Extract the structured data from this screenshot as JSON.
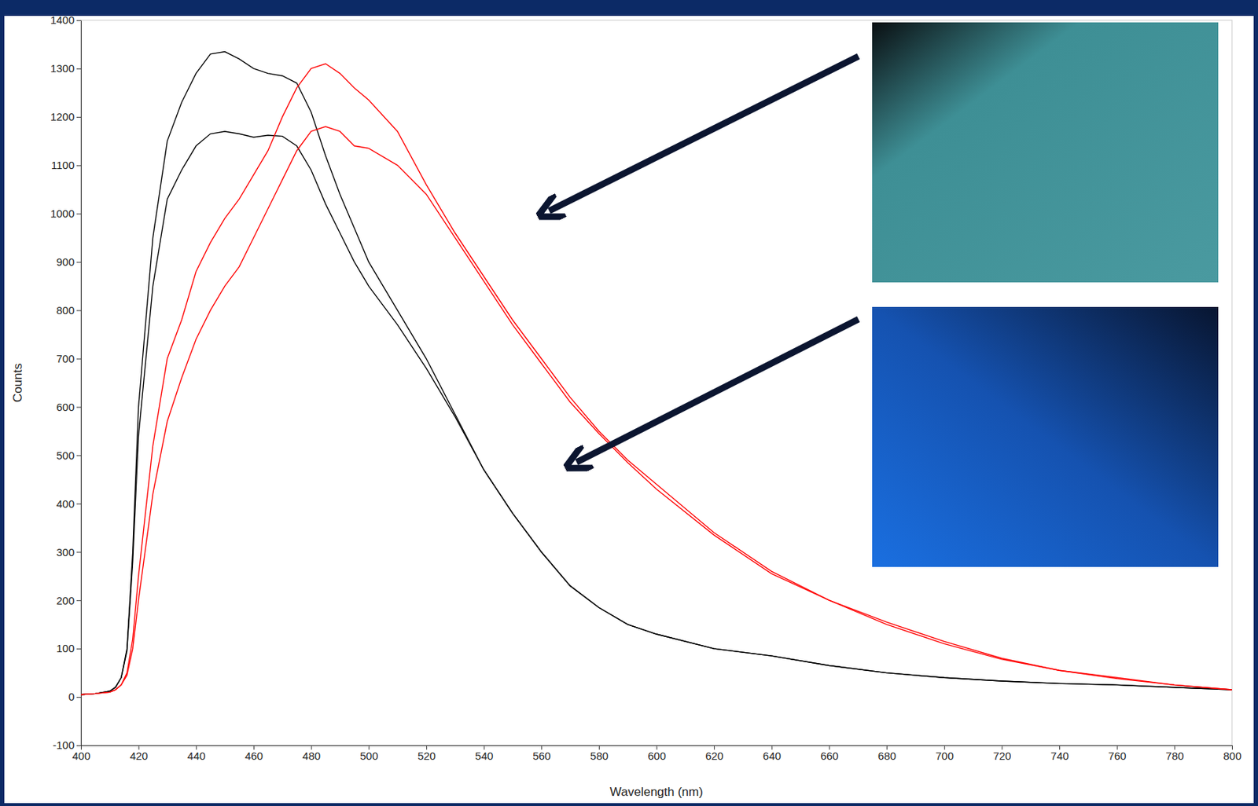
{
  "chart_data": {
    "type": "line",
    "x_label": "Wavelength (nm)",
    "y_label": "Counts",
    "x": [
      400,
      405,
      410,
      412,
      414,
      416,
      418,
      420,
      425,
      430,
      435,
      440,
      445,
      450,
      455,
      460,
      465,
      470,
      475,
      480,
      485,
      490,
      495,
      500,
      510,
      520,
      530,
      540,
      550,
      560,
      570,
      580,
      590,
      600,
      620,
      640,
      660,
      680,
      700,
      720,
      740,
      760,
      780,
      800
    ],
    "series": [
      {
        "color": "#000000",
        "values": [
          5,
          7,
          12,
          20,
          40,
          100,
          300,
          600,
          950,
          1150,
          1230,
          1290,
          1330,
          1335,
          1320,
          1300,
          1290,
          1285,
          1270,
          1210,
          1120,
          1040,
          970,
          900,
          800,
          700,
          585,
          470,
          380,
          300,
          230,
          185,
          150,
          130,
          100,
          85,
          65,
          50,
          40,
          33,
          28,
          25,
          20,
          15
        ]
      },
      {
        "color": "#000000",
        "values": [
          5,
          7,
          12,
          20,
          40,
          95,
          280,
          540,
          850,
          1030,
          1090,
          1140,
          1165,
          1170,
          1165,
          1158,
          1162,
          1160,
          1140,
          1090,
          1020,
          960,
          900,
          850,
          770,
          680,
          580,
          470,
          380,
          300,
          230,
          185,
          150,
          130,
          100,
          85,
          65,
          50,
          40,
          33,
          28,
          25,
          20,
          15
        ]
      },
      {
        "color": "#ff0000",
        "values": [
          5,
          7,
          10,
          15,
          25,
          50,
          120,
          250,
          520,
          700,
          780,
          880,
          940,
          990,
          1030,
          1080,
          1130,
          1200,
          1260,
          1300,
          1310,
          1290,
          1260,
          1235,
          1170,
          1060,
          960,
          870,
          780,
          700,
          620,
          550,
          490,
          440,
          340,
          260,
          200,
          155,
          115,
          80,
          55,
          40,
          25,
          15
        ]
      },
      {
        "color": "#ff0000",
        "values": [
          5,
          7,
          10,
          15,
          25,
          45,
          100,
          200,
          420,
          570,
          660,
          740,
          800,
          850,
          890,
          950,
          1010,
          1070,
          1130,
          1170,
          1180,
          1170,
          1140,
          1135,
          1100,
          1040,
          950,
          860,
          770,
          690,
          610,
          545,
          485,
          430,
          335,
          255,
          200,
          150,
          110,
          78,
          55,
          38,
          25,
          15
        ]
      }
    ],
    "xlim": [
      400,
      800
    ],
    "xticks": [
      400,
      420,
      440,
      460,
      480,
      500,
      520,
      540,
      560,
      580,
      600,
      620,
      640,
      660,
      680,
      700,
      720,
      740,
      760,
      780,
      800
    ],
    "ylim": [
      -100,
      1400
    ],
    "yticks": [
      -100,
      0,
      100,
      200,
      300,
      400,
      500,
      600,
      700,
      800,
      900,
      1000,
      1100,
      1200,
      1300,
      1400
    ],
    "grid": false
  }
}
